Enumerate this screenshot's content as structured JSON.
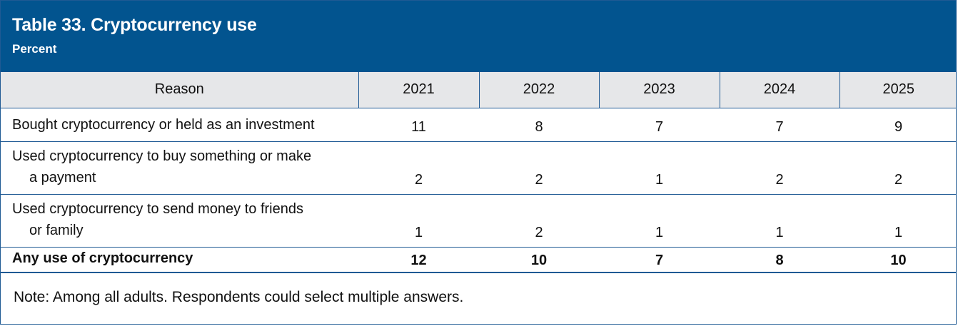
{
  "table": {
    "title": "Table 33. Cryptocurrency use",
    "subtitle": "Percent",
    "columns": [
      "Reason",
      "2021",
      "2022",
      "2023",
      "2024",
      "2025"
    ],
    "rows": [
      {
        "reason_line1": "Bought cryptocurrency or held as an investment",
        "reason_line2": "",
        "values": [
          "11",
          "8",
          "7",
          "7",
          "9"
        ]
      },
      {
        "reason_line1": "Used cryptocurrency to buy something or make",
        "reason_line2": "a payment",
        "values": [
          "2",
          "2",
          "1",
          "2",
          "2"
        ]
      },
      {
        "reason_line1": "Used cryptocurrency to send money to friends",
        "reason_line2": "or family",
        "values": [
          "1",
          "2",
          "1",
          "1",
          "1"
        ]
      },
      {
        "reason_line1": "Any use of cryptocurrency",
        "reason_line2": "",
        "values": [
          "12",
          "10",
          "7",
          "8",
          "10"
        ]
      }
    ],
    "note": "Note: Among all adults. Respondents could select multiple answers."
  }
}
